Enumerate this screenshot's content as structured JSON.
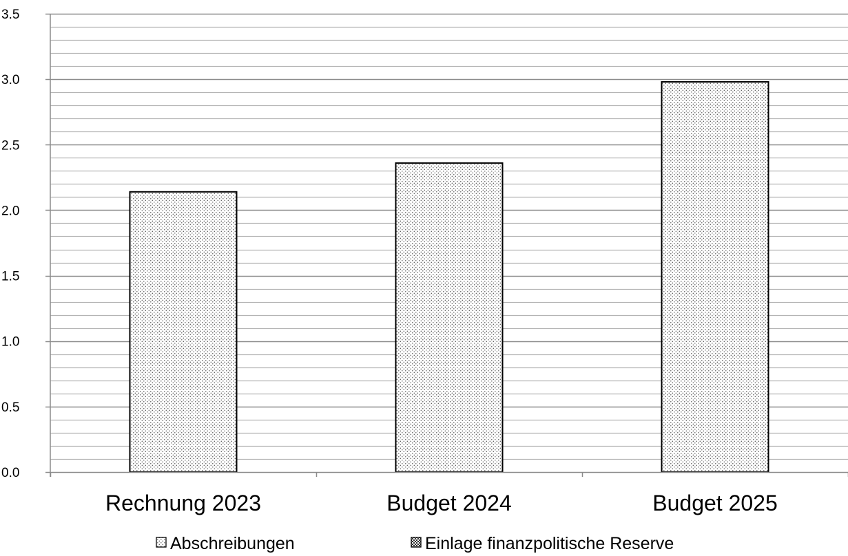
{
  "chart_data": {
    "type": "bar",
    "stacked": true,
    "categories": [
      "Rechnung 2023",
      "Budget 2024",
      "Budget 2025"
    ],
    "series": [
      {
        "name": "Abschreibungen",
        "values": [
          2.14,
          2.36,
          2.98
        ],
        "pattern": "fine-dots"
      },
      {
        "name": "Einlage finanzpolitische Reserve",
        "values": [
          0,
          0,
          0
        ],
        "pattern": "coarse-dots"
      }
    ],
    "ylim": [
      0,
      3.5
    ],
    "y_ticks": [
      "0.0",
      "0.5",
      "1.0",
      "1.5",
      "2.0",
      "2.5",
      "3.0",
      "3.5"
    ],
    "y_major_step": 0.5,
    "y_minor_step": 0.1,
    "grid": true,
    "legend_position": "bottom",
    "colors": {
      "bar_stroke": "#000000",
      "dot": "#555555",
      "major_grid": "#8c8c8c",
      "minor_grid": "#b4b4b4"
    }
  }
}
